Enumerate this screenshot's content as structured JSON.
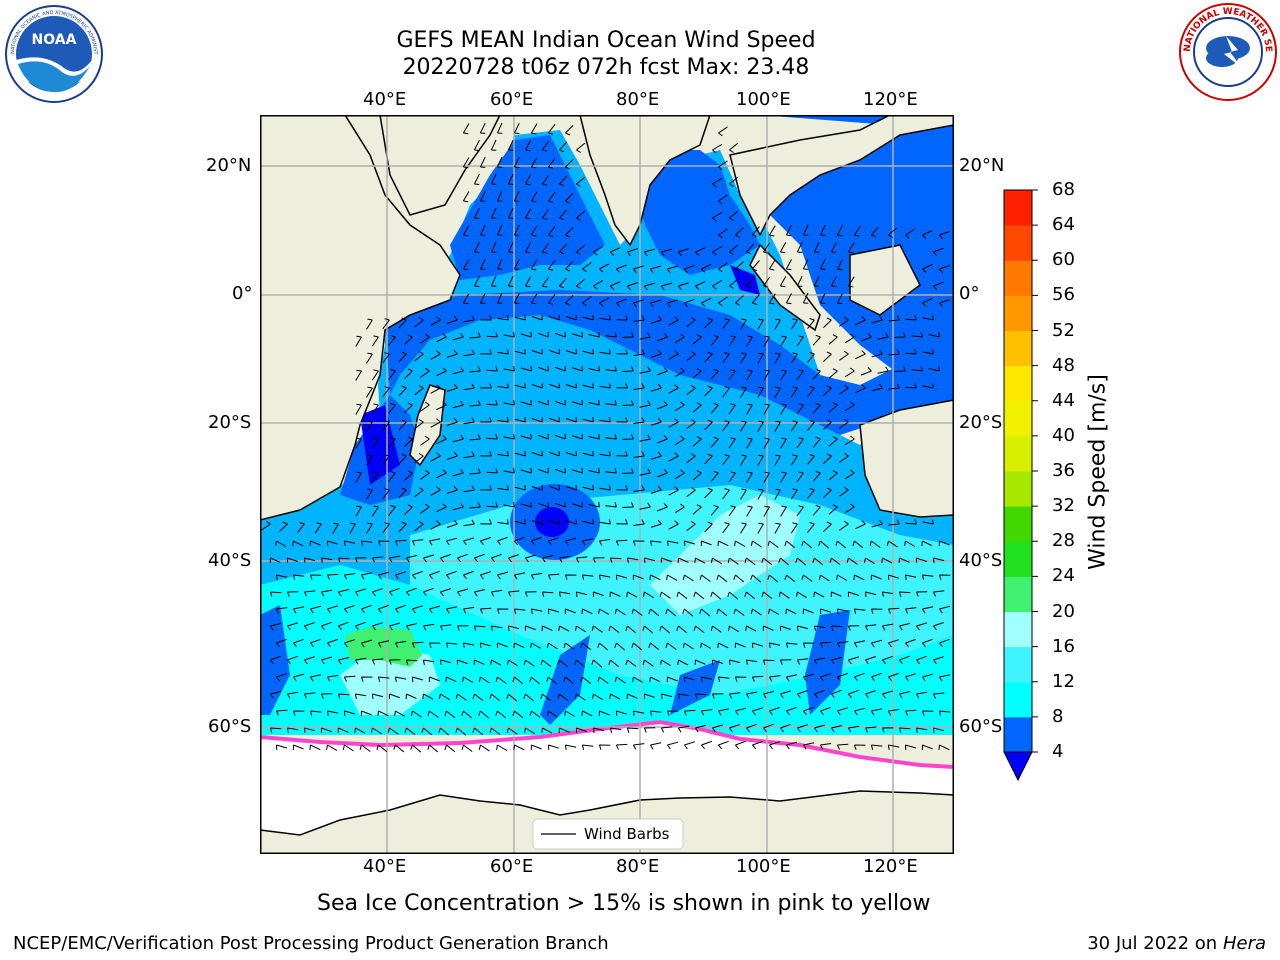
{
  "title": {
    "line1": "GEFS MEAN Indian Ocean Wind Speed",
    "line2": "20220728 t06z 072h fcst   Max: 23.48"
  },
  "map": {
    "lon_labels": [
      "40°E",
      "60°E",
      "80°E",
      "100°E",
      "120°E"
    ],
    "lat_labels": [
      "20°N",
      "0°",
      "20°S",
      "40°S",
      "60°S"
    ],
    "legend_label": "Wind Barbs",
    "colors": {
      "land": "#eeeedd",
      "ocean_base": "#00b4ff",
      "ice": "#ffffff"
    }
  },
  "colorbar": {
    "label": "Wind Speed [m/s]",
    "ticks": [
      "4",
      "8",
      "12",
      "16",
      "20",
      "24",
      "28",
      "32",
      "36",
      "40",
      "44",
      "48",
      "52",
      "56",
      "60",
      "64",
      "68"
    ],
    "colors": [
      "#0066ff",
      "#00ffff",
      "#40f4ff",
      "#a0ffff",
      "#40f070",
      "#20e020",
      "#40d800",
      "#a8e800",
      "#d8f000",
      "#f0f000",
      "#ffe800",
      "#ffc000",
      "#ff9800",
      "#ff7800",
      "#ff4800",
      "#ff2000",
      "#ff0000"
    ],
    "under_color": "#0000ff"
  },
  "logos": {
    "noaa_text": "NOAA",
    "noaa_ring": "NATIONAL OCEANIC AND ATMOSPHERIC ADMINISTRATION · U.S. DEPARTMENT OF COMMERCE",
    "nws_ring": "NATIONAL WEATHER SERVICE"
  },
  "notes": {
    "sea_ice": "Sea Ice Concentration > 15% is shown in pink to yellow"
  },
  "footer": {
    "left": "NCEP/EMC/Verification Post Processing Product Generation Branch",
    "date": "30 Jul 2022 on ",
    "machine": "Hera"
  }
}
